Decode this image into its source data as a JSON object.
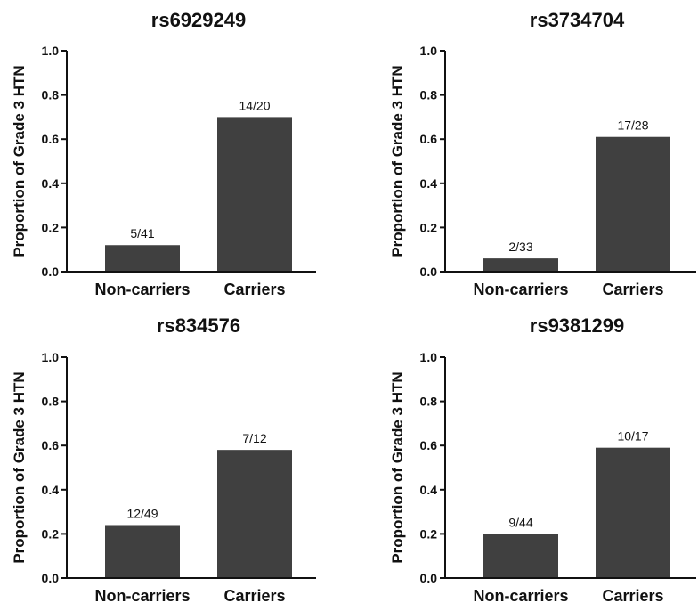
{
  "chart_data": [
    {
      "type": "bar",
      "title": "rs6929249",
      "ylabel": "Proportion of Grade 3 HTN",
      "xlabel": "",
      "categories": [
        "Non-carriers",
        "Carriers"
      ],
      "values": [
        0.12,
        0.7
      ],
      "data_labels": [
        "5/41",
        "14/20"
      ],
      "ylim": [
        0,
        1.0
      ],
      "yticks": [
        "0.0",
        "0.2",
        "0.4",
        "0.6",
        "0.8",
        "1.0"
      ],
      "bar_color": "#404040",
      "grid": false
    },
    {
      "type": "bar",
      "title": "rs3734704",
      "ylabel": "Proportion of Grade 3 HTN",
      "xlabel": "",
      "categories": [
        "Non-carriers",
        "Carriers"
      ],
      "values": [
        0.06,
        0.61
      ],
      "data_labels": [
        "2/33",
        "17/28"
      ],
      "ylim": [
        0,
        1.0
      ],
      "yticks": [
        "0.0",
        "0.2",
        "0.4",
        "0.6",
        "0.8",
        "1.0"
      ],
      "bar_color": "#404040",
      "grid": false
    },
    {
      "type": "bar",
      "title": "rs834576",
      "ylabel": "Proportion of Grade 3 HTN",
      "xlabel": "",
      "categories": [
        "Non-carriers",
        "Carriers"
      ],
      "values": [
        0.24,
        0.58
      ],
      "data_labels": [
        "12/49",
        "7/12"
      ],
      "ylim": [
        0,
        1.0
      ],
      "yticks": [
        "0.0",
        "0.2",
        "0.4",
        "0.6",
        "0.8",
        "1.0"
      ],
      "bar_color": "#404040",
      "grid": false
    },
    {
      "type": "bar",
      "title": "rs9381299",
      "ylabel": "Proportion of Grade 3 HTN",
      "xlabel": "",
      "categories": [
        "Non-carriers",
        "Carriers"
      ],
      "values": [
        0.2,
        0.59
      ],
      "data_labels": [
        "9/44",
        "10/17"
      ],
      "ylim": [
        0,
        1.0
      ],
      "yticks": [
        "0.0",
        "0.2",
        "0.4",
        "0.6",
        "0.8",
        "1.0"
      ],
      "bar_color": "#404040",
      "grid": false
    }
  ]
}
